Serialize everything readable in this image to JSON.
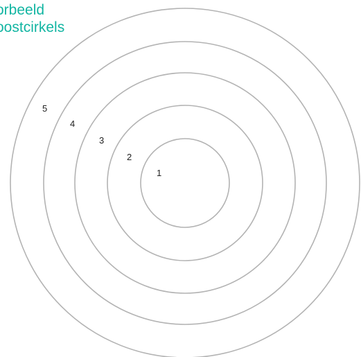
{
  "heading": {
    "line1": "orbeeld",
    "line2": "oostcirkels"
  },
  "colors": {
    "heading": "#12b5a2",
    "ring_stroke": "#b3b3b3",
    "label": "#222222"
  },
  "rings": [
    {
      "label": "1"
    },
    {
      "label": "2"
    },
    {
      "label": "3"
    },
    {
      "label": "4"
    },
    {
      "label": "5"
    }
  ]
}
